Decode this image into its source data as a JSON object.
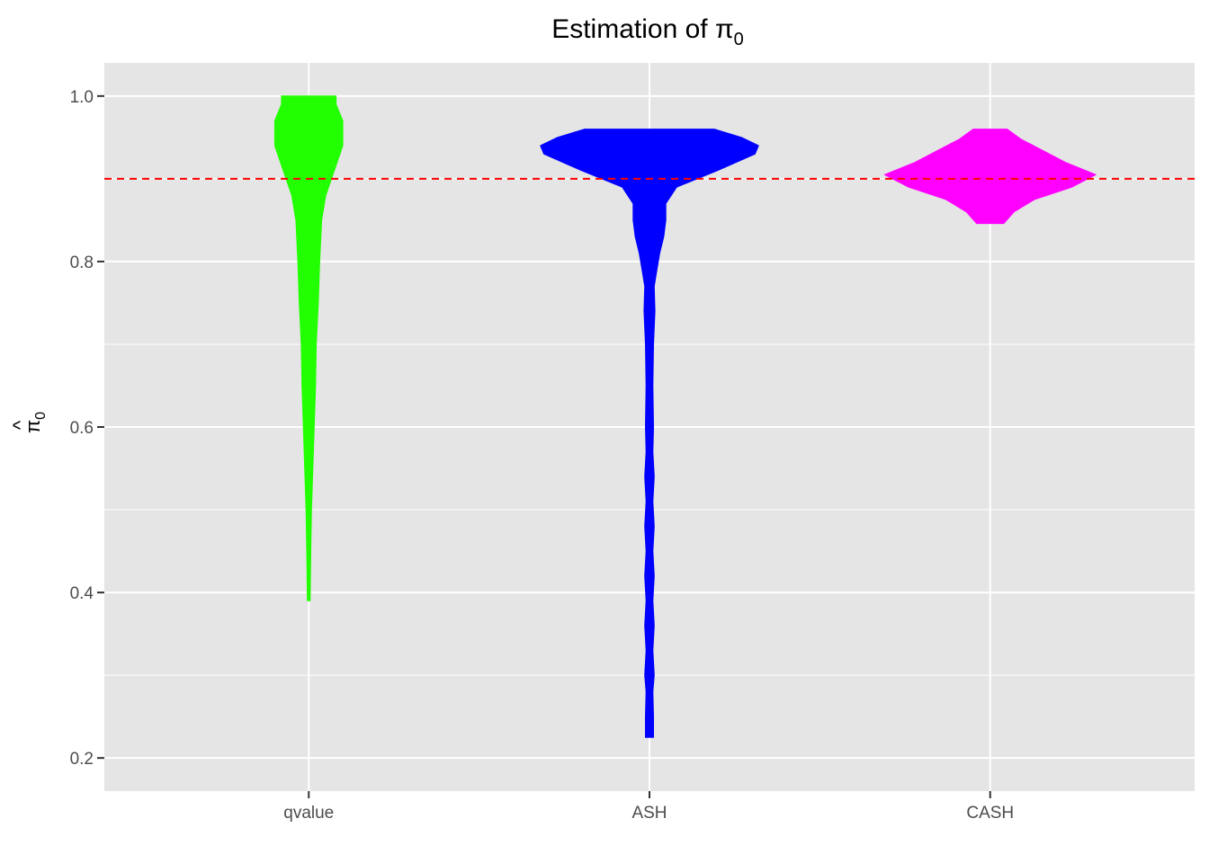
{
  "chart_data": {
    "type": "violin",
    "title": "Estimation of π",
    "title_subscript": "0",
    "ylabel": "π",
    "ylabel_subscript": "0",
    "ylabel_accent": "^",
    "xlabel": "",
    "categories": [
      "qvalue",
      "ASH",
      "CASH"
    ],
    "ylim": [
      0.16,
      1.04
    ],
    "yticks": [
      0.2,
      0.4,
      0.6,
      0.8,
      1.0
    ],
    "ytick_labels": [
      "0.2",
      "0.4",
      "0.6",
      "0.8",
      "1.0"
    ],
    "grid": true,
    "background": "#e5e5e5",
    "reference_line": {
      "y": 0.9,
      "color": "#ff0000",
      "style": "dashed"
    },
    "max_half_width": 0.32,
    "series": [
      {
        "category": "qvalue",
        "color": "#22ff00",
        "density": [
          [
            0.39,
            0.004
          ],
          [
            0.45,
            0.006
          ],
          [
            0.5,
            0.008
          ],
          [
            0.55,
            0.012
          ],
          [
            0.6,
            0.016
          ],
          [
            0.65,
            0.02
          ],
          [
            0.7,
            0.022
          ],
          [
            0.75,
            0.028
          ],
          [
            0.8,
            0.032
          ],
          [
            0.85,
            0.038
          ],
          [
            0.88,
            0.05
          ],
          [
            0.91,
            0.075
          ],
          [
            0.94,
            0.1
          ],
          [
            0.97,
            0.1
          ],
          [
            0.99,
            0.08
          ],
          [
            1.0,
            0.08
          ]
        ]
      },
      {
        "category": "ASH",
        "color": "#0000ff",
        "density": [
          [
            0.225,
            0.012
          ],
          [
            0.25,
            0.012
          ],
          [
            0.28,
            0.01
          ],
          [
            0.3,
            0.014
          ],
          [
            0.33,
            0.01
          ],
          [
            0.36,
            0.014
          ],
          [
            0.39,
            0.01
          ],
          [
            0.42,
            0.014
          ],
          [
            0.45,
            0.01
          ],
          [
            0.48,
            0.014
          ],
          [
            0.51,
            0.01
          ],
          [
            0.54,
            0.014
          ],
          [
            0.57,
            0.01
          ],
          [
            0.6,
            0.012
          ],
          [
            0.65,
            0.01
          ],
          [
            0.7,
            0.012
          ],
          [
            0.74,
            0.016
          ],
          [
            0.77,
            0.014
          ],
          [
            0.79,
            0.022
          ],
          [
            0.81,
            0.03
          ],
          [
            0.83,
            0.042
          ],
          [
            0.85,
            0.048
          ],
          [
            0.87,
            0.048
          ],
          [
            0.89,
            0.08
          ],
          [
            0.91,
            0.2
          ],
          [
            0.93,
            0.31
          ],
          [
            0.94,
            0.32
          ],
          [
            0.95,
            0.27
          ],
          [
            0.96,
            0.19
          ]
        ]
      },
      {
        "category": "CASH",
        "color": "#ff00ff",
        "density": [
          [
            0.846,
            0.04
          ],
          [
            0.86,
            0.07
          ],
          [
            0.875,
            0.13
          ],
          [
            0.89,
            0.24
          ],
          [
            0.905,
            0.31
          ],
          [
            0.92,
            0.22
          ],
          [
            0.935,
            0.15
          ],
          [
            0.948,
            0.09
          ],
          [
            0.96,
            0.05
          ]
        ]
      }
    ]
  }
}
